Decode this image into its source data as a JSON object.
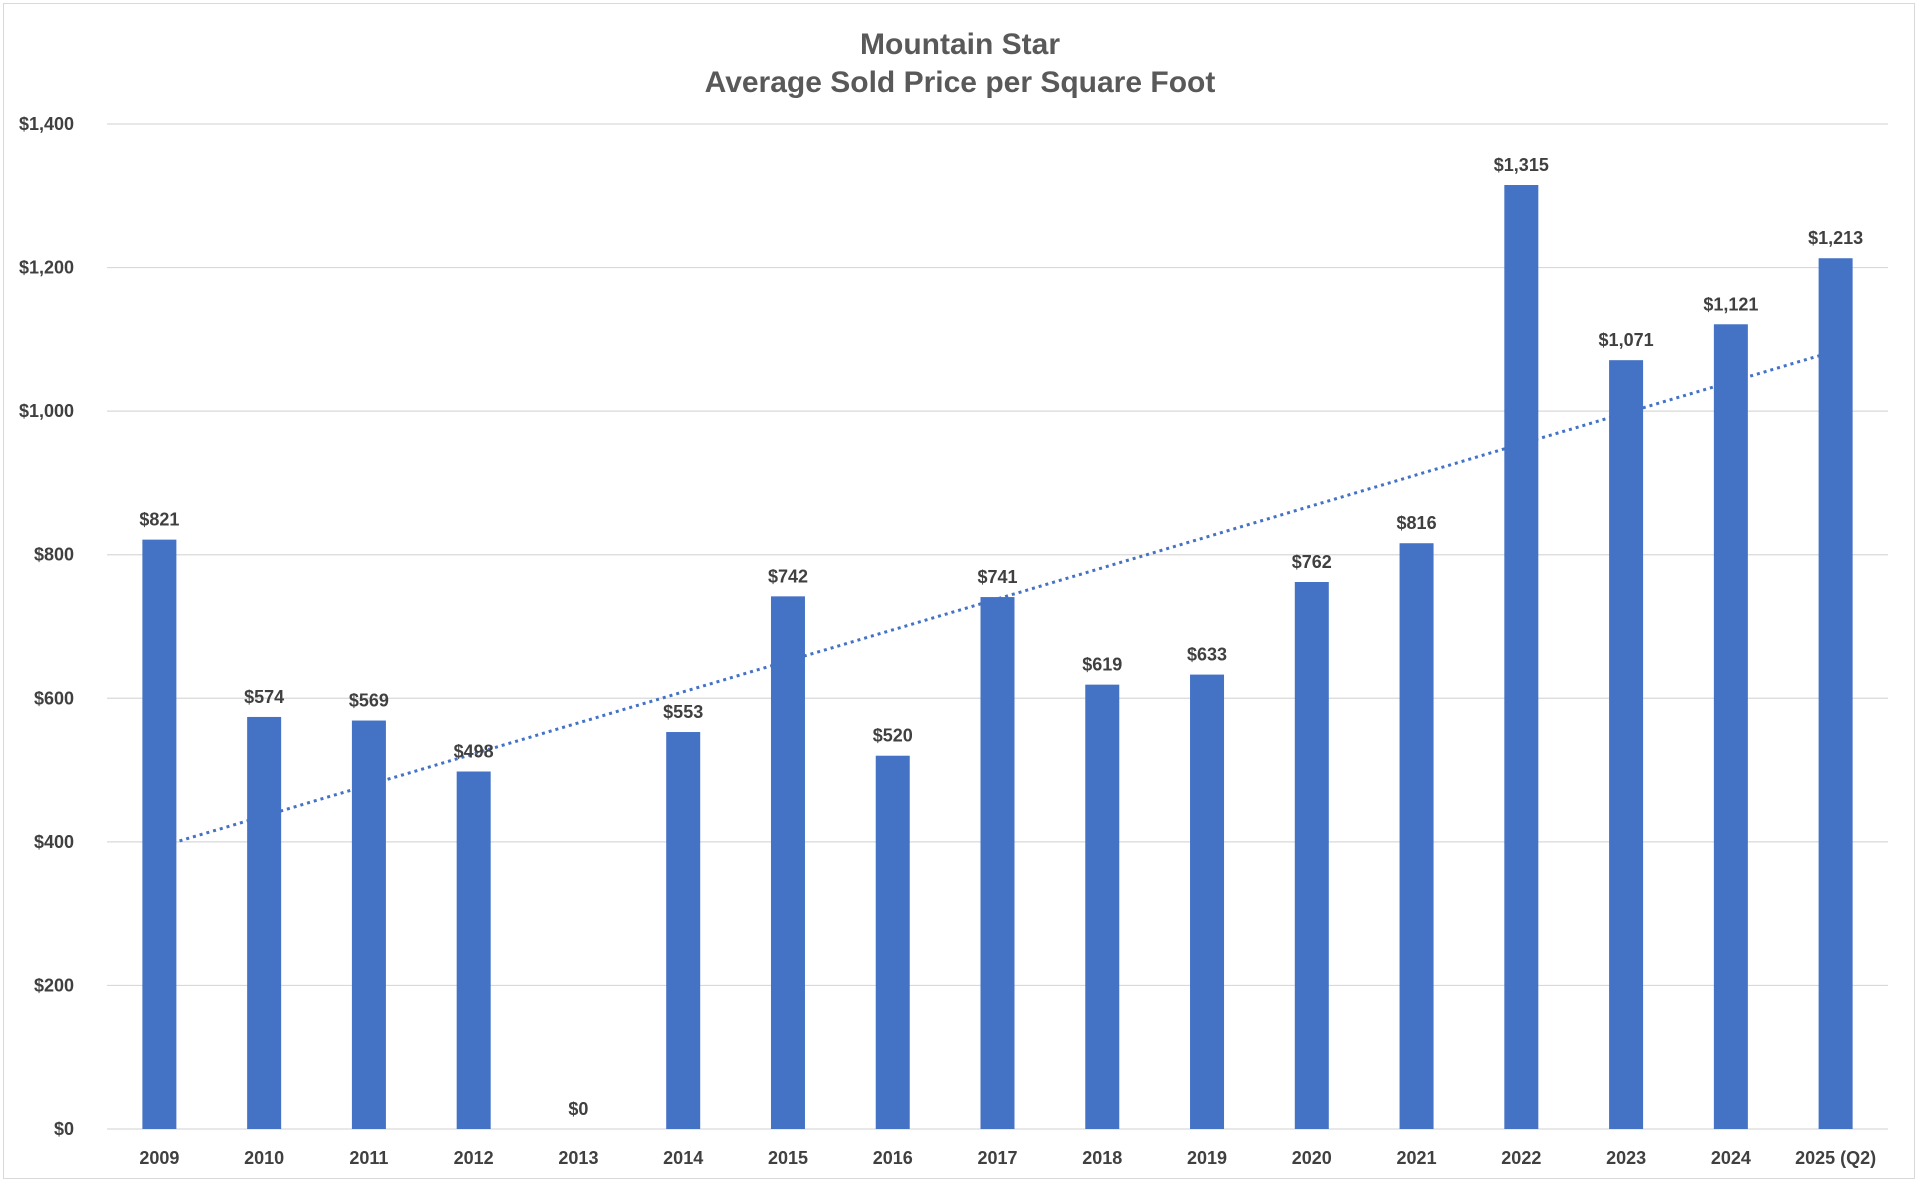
{
  "chart_data": {
    "type": "bar",
    "title": "Mountain Star",
    "subtitle": "Average Sold Price per Square Foot",
    "xlabel": "",
    "ylabel": "",
    "categories": [
      "2009",
      "2010",
      "2011",
      "2012",
      "2013",
      "2014",
      "2015",
      "2016",
      "2017",
      "2018",
      "2019",
      "2020",
      "2021",
      "2022",
      "2023",
      "2024",
      "2025 (Q2)"
    ],
    "values": [
      821,
      574,
      569,
      498,
      0,
      553,
      742,
      520,
      741,
      619,
      633,
      762,
      816,
      1315,
      1071,
      1121,
      1213
    ],
    "data_labels": [
      "$821",
      "$574",
      "$569",
      "$498",
      "$0",
      "$553",
      "$742",
      "$520",
      "$741",
      "$619",
      "$633",
      "$762",
      "$816",
      "$1,315",
      "$1,071",
      "$1,121",
      "$1,213"
    ],
    "ylim": [
      0,
      1400
    ],
    "yticks": [
      0,
      200,
      400,
      600,
      800,
      1000,
      1200,
      1400
    ],
    "ytick_labels": [
      "$0",
      "$200",
      "$400",
      "$600",
      "$800",
      "$1,000",
      "$1,200",
      "$1,400"
    ],
    "grid": true,
    "trendline": {
      "type": "linear",
      "style": "dotted",
      "start_value": 393,
      "end_value": 1084
    },
    "colors": {
      "bar": "#4472c4",
      "trendline": "#4472c4",
      "grid": "#d9d9d9",
      "text": "#404040",
      "title": "#595959"
    }
  }
}
